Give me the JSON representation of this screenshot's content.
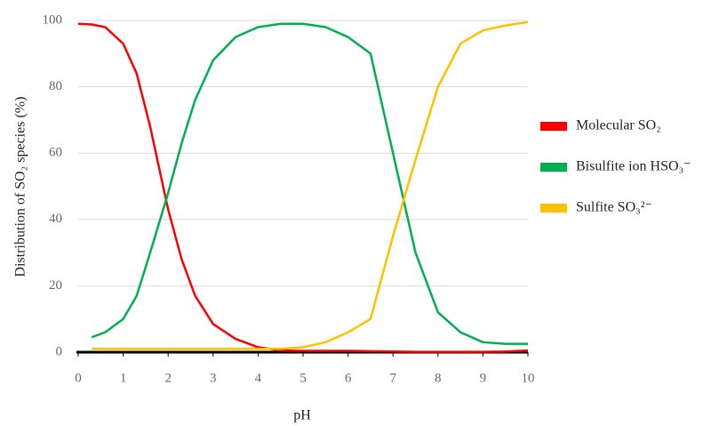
{
  "chart_data": {
    "type": "line",
    "x_label": "pH",
    "y_label": "Distribution of SO₂ species  (%)",
    "x": [
      0,
      0.3,
      0.6,
      1,
      1.3,
      1.6,
      2,
      2.3,
      2.6,
      3,
      3.5,
      4,
      4.5,
      5,
      5.5,
      6,
      6.5,
      7,
      7.5,
      8,
      8.5,
      9,
      9.5,
      10
    ],
    "series": [
      {
        "name": "Molecular SO₂",
        "color": "#ff0000",
        "values": [
          99,
          98.8,
          98,
          93,
          84,
          68,
          43,
          28,
          17,
          8.5,
          4,
          1.5,
          0.5,
          0.4,
          0.4,
          0.4,
          0.3,
          0.2,
          0.1,
          0.1,
          0.1,
          0.1,
          0.2,
          0.5
        ]
      },
      {
        "name": "Bisulfite ion HSO₃⁻",
        "color": "#00b050",
        "values": [
          null,
          4.5,
          6,
          10,
          17,
          30,
          48,
          63,
          76,
          88,
          95,
          98,
          99,
          99,
          98,
          95,
          90,
          60,
          30,
          12,
          6,
          3,
          2.5,
          2.5
        ]
      },
      {
        "name": "Sulfite SO₃²⁻",
        "color": "#ffc000",
        "values": [
          null,
          1,
          1,
          1,
          1,
          1,
          1,
          1,
          1,
          1,
          1,
          1,
          1,
          1.5,
          3,
          6,
          10,
          35,
          58,
          80,
          93,
          97,
          98.5,
          99.5
        ]
      }
    ],
    "xlim": [
      0,
      10
    ],
    "xticks": [
      0,
      1,
      2,
      3,
      4,
      5,
      6,
      7,
      8,
      9,
      10
    ],
    "ylim": [
      0,
      100
    ],
    "yticks": [
      0,
      20,
      40,
      60,
      80,
      100
    ],
    "grid": true,
    "legend": "right"
  }
}
